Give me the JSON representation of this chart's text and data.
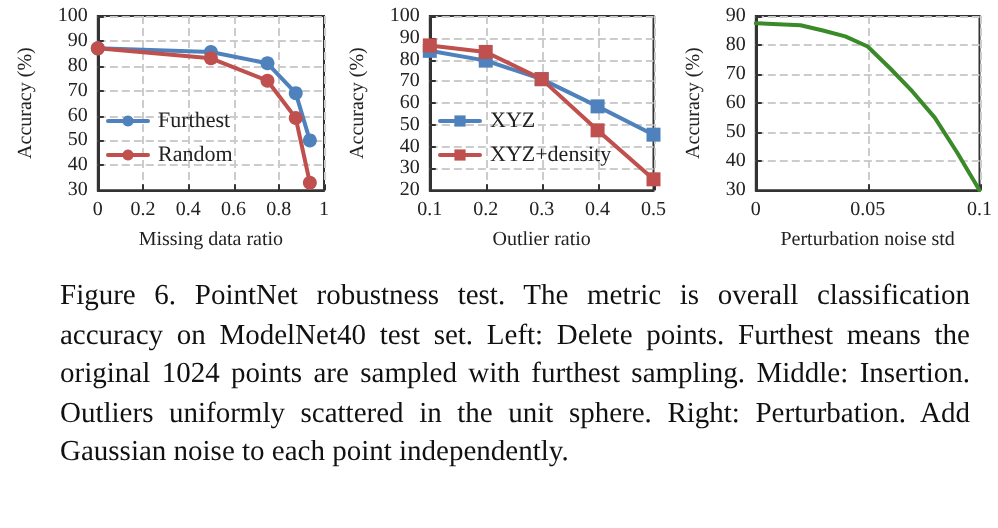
{
  "chart_data": [
    {
      "type": "line",
      "xlabel": "Missing data ratio",
      "ylabel": "Accuracy (%)",
      "x": [
        0,
        0.5,
        0.75,
        0.875,
        0.9375
      ],
      "xlim": [
        0,
        1
      ],
      "xticks": [
        0,
        0.2,
        0.4,
        0.6,
        0.8,
        1
      ],
      "ylim": [
        30,
        100
      ],
      "yticks": [
        30,
        40,
        50,
        60,
        70,
        80,
        90,
        100
      ],
      "grid": true,
      "legend": "bottom left",
      "marker": "circle",
      "series": [
        {
          "name": "Furthest",
          "color": "#4f81bd",
          "values": [
            87,
            85.5,
            81,
            69,
            50
          ]
        },
        {
          "name": "Random",
          "color": "#c0504d",
          "values": [
            87,
            83,
            74,
            59,
            33
          ]
        }
      ],
      "annotations": [
        "Figure 6. PointNet robustness test.  The metric is overall classification accuracy on ModelNet40 test set.  Left: Delete points. Furthest means the original 1024 points are sampled with furthest sampling. Middle: Insertion. Outliers uniformly scattered in the unit sphere.  Right: Perturbation.  Add Gaussian noise to each point independently."
      ]
    },
    {
      "type": "line",
      "xlabel": "Outlier ratio",
      "ylabel": "Accuracy (%)",
      "x": [
        0.1,
        0.2,
        0.3,
        0.4,
        0.5
      ],
      "xlim": [
        0.1,
        0.5
      ],
      "xticks": [
        0.1,
        0.2,
        0.3,
        0.4,
        0.5
      ],
      "ylim": [
        20,
        100
      ],
      "yticks": [
        20,
        30,
        40,
        50,
        60,
        70,
        80,
        90,
        100
      ],
      "grid": true,
      "legend": "bottom left",
      "marker": "square",
      "series": [
        {
          "name": "XYZ",
          "color": "#4f81bd",
          "values": [
            84,
            79.5,
            71,
            58.5,
            45.5
          ]
        },
        {
          "name": "XYZ+density",
          "color": "#c0504d",
          "values": [
            86.5,
            83.5,
            71,
            47.5,
            25
          ]
        }
      ]
    },
    {
      "type": "line",
      "xlabel": "Perturbation noise std",
      "ylabel": "Accuracy (%)",
      "x": [
        0,
        0.01,
        0.02,
        0.03,
        0.04,
        0.05,
        0.06,
        0.07,
        0.08,
        0.09,
        0.1
      ],
      "xlim": [
        0,
        0.1
      ],
      "xticks": [
        0,
        0.05,
        0.1
      ],
      "ylim": [
        30,
        90
      ],
      "yticks": [
        30,
        40,
        50,
        60,
        70,
        80,
        90
      ],
      "grid": true,
      "marker": "none",
      "series": [
        {
          "color": "#3a8a2a",
          "values": [
            87.5,
            87.2,
            86.8,
            85,
            83,
            79.5,
            72,
            64,
            55,
            43,
            30
          ]
        }
      ]
    }
  ]
}
